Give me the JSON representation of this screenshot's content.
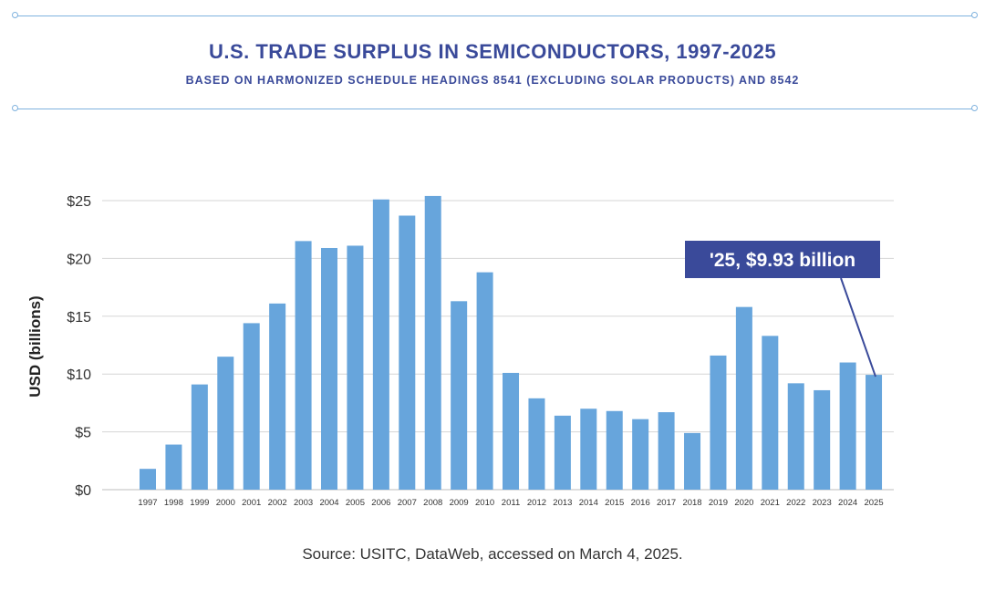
{
  "header": {
    "title": "U.S. TRADE SURPLUS IN SEMICONDUCTORS, 1997-2025",
    "subtitle": "BASED ON HARMONIZED SCHEDULE HEADINGS 8541 (EXCLUDING SOLAR PRODUCTS) AND 8542"
  },
  "footer": {
    "source": "Source: USITC, DataWeb, accessed on March 4, 2025."
  },
  "colors": {
    "bar": "#67a5dc",
    "accent": "#3a4a9a",
    "grid": "#d6d6d6",
    "rule": "#7fb2de"
  },
  "chart_data": {
    "type": "bar",
    "title": "U.S. TRADE SURPLUS IN SEMICONDUCTORS, 1997-2025",
    "subtitle": "BASED ON HARMONIZED SCHEDULE HEADINGS 8541 (EXCLUDING SOLAR PRODUCTS) AND 8542",
    "xlabel": "",
    "ylabel": "USD (billions)",
    "ylim": [
      0,
      25
    ],
    "yticks": [
      0,
      5,
      10,
      15,
      20,
      25
    ],
    "ytick_labels": [
      "$0",
      "$5",
      "$10",
      "$15",
      "$20",
      "$25"
    ],
    "grid": true,
    "categories": [
      "1997",
      "1998",
      "1999",
      "2000",
      "2001",
      "2002",
      "2003",
      "2004",
      "2005",
      "2006",
      "2007",
      "2008",
      "2009",
      "2010",
      "2011",
      "2012",
      "2013",
      "2014",
      "2015",
      "2016",
      "2017",
      "2018",
      "2019",
      "2020",
      "2021",
      "2022",
      "2023",
      "2024",
      "2025"
    ],
    "values": [
      1.8,
      3.9,
      9.1,
      11.5,
      14.4,
      16.1,
      21.5,
      20.9,
      21.1,
      25.1,
      23.7,
      25.4,
      16.3,
      18.8,
      10.1,
      7.9,
      6.4,
      7.0,
      6.8,
      6.1,
      6.7,
      4.9,
      11.6,
      15.8,
      13.3,
      9.2,
      8.6,
      11.0,
      9.93
    ],
    "annotation": {
      "text": "'25, $9.93 billion",
      "category": "2025",
      "value": 9.93
    }
  }
}
